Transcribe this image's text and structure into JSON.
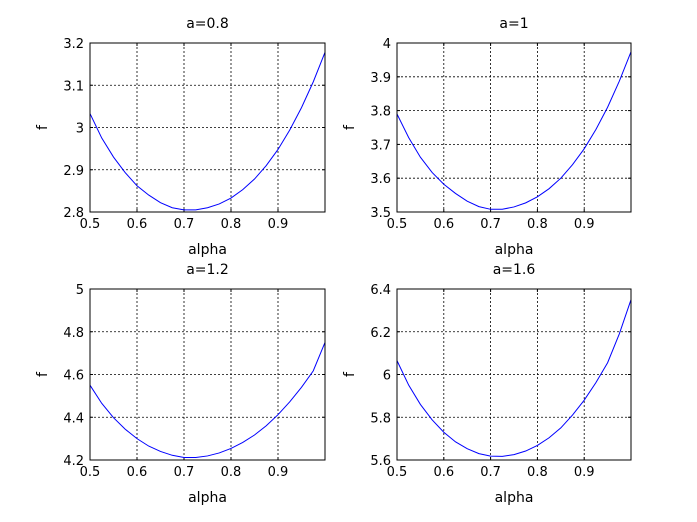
{
  "chart_data": [
    {
      "type": "line",
      "title": "a=0.8",
      "xlabel": "alpha",
      "ylabel": "f",
      "xlim": [
        0.5,
        1.0
      ],
      "ylim": [
        2.8,
        3.2
      ],
      "xticks": [
        0.5,
        0.6,
        0.7,
        0.8,
        0.9
      ],
      "xtick_labels": [
        "0.5",
        "0.6",
        "0.7",
        "0.8",
        "0.9"
      ],
      "yticks": [
        2.8,
        2.9,
        3.0,
        3.1,
        3.2
      ],
      "ytick_labels": [
        "2.8",
        "2.9",
        "3",
        "3.1",
        "3.2"
      ],
      "grid": true,
      "series": [
        {
          "color": "#0000ff",
          "x": [
            0.5,
            0.525,
            0.55,
            0.575,
            0.6,
            0.625,
            0.65,
            0.675,
            0.7,
            0.725,
            0.75,
            0.775,
            0.8,
            0.825,
            0.85,
            0.875,
            0.9,
            0.925,
            0.95,
            0.975,
            1.0
          ],
          "y": [
            3.033,
            2.975,
            2.93,
            2.893,
            2.862,
            2.84,
            2.822,
            2.81,
            2.805,
            2.805,
            2.81,
            2.819,
            2.833,
            2.853,
            2.878,
            2.91,
            2.948,
            2.994,
            3.047,
            3.108,
            3.178
          ]
        }
      ]
    },
    {
      "type": "line",
      "title": "a=1",
      "xlabel": "alpha",
      "ylabel": "f",
      "xlim": [
        0.5,
        1.0
      ],
      "ylim": [
        3.5,
        4.0
      ],
      "xticks": [
        0.5,
        0.6,
        0.7,
        0.8,
        0.9
      ],
      "xtick_labels": [
        "0.5",
        "0.6",
        "0.7",
        "0.8",
        "0.9"
      ],
      "yticks": [
        3.5,
        3.6,
        3.7,
        3.8,
        3.9,
        4.0
      ],
      "ytick_labels": [
        "3.5",
        "3.6",
        "3.7",
        "3.8",
        "3.9",
        "4"
      ],
      "grid": true,
      "series": [
        {
          "color": "#0000ff",
          "x": [
            0.5,
            0.525,
            0.55,
            0.575,
            0.6,
            0.625,
            0.65,
            0.675,
            0.7,
            0.725,
            0.75,
            0.775,
            0.8,
            0.825,
            0.85,
            0.875,
            0.9,
            0.925,
            0.95,
            0.975,
            1.0
          ],
          "y": [
            3.79,
            3.72,
            3.662,
            3.617,
            3.582,
            3.555,
            3.532,
            3.516,
            3.508,
            3.508,
            3.515,
            3.527,
            3.545,
            3.569,
            3.6,
            3.64,
            3.687,
            3.744,
            3.81,
            3.887,
            3.974
          ]
        }
      ]
    },
    {
      "type": "line",
      "title": "a=1.2",
      "xlabel": "alpha",
      "ylabel": "f",
      "xlim": [
        0.5,
        1.0
      ],
      "ylim": [
        4.2,
        5.0
      ],
      "xticks": [
        0.5,
        0.6,
        0.7,
        0.8,
        0.9
      ],
      "xtick_labels": [
        "0.5",
        "0.6",
        "0.7",
        "0.8",
        "0.9"
      ],
      "yticks": [
        4.2,
        4.4,
        4.6,
        4.8,
        5.0
      ],
      "ytick_labels": [
        "4.2",
        "4.4",
        "4.6",
        "4.8",
        "5"
      ],
      "grid": true,
      "series": [
        {
          "color": "#0000ff",
          "x": [
            0.5,
            0.525,
            0.55,
            0.575,
            0.6,
            0.625,
            0.65,
            0.675,
            0.7,
            0.725,
            0.75,
            0.775,
            0.8,
            0.825,
            0.85,
            0.875,
            0.9,
            0.925,
            0.95,
            0.975,
            1.0
          ],
          "y": [
            4.55,
            4.465,
            4.398,
            4.344,
            4.3,
            4.265,
            4.24,
            4.222,
            4.212,
            4.212,
            4.219,
            4.233,
            4.254,
            4.282,
            4.317,
            4.36,
            4.412,
            4.472,
            4.54,
            4.617,
            4.75
          ]
        }
      ]
    },
    {
      "type": "line",
      "title": "a=1.6",
      "xlabel": "alpha",
      "ylabel": "f",
      "xlim": [
        0.5,
        1.0
      ],
      "ylim": [
        5.6,
        6.4
      ],
      "xticks": [
        0.5,
        0.6,
        0.7,
        0.8,
        0.9
      ],
      "xtick_labels": [
        "0.5",
        "0.6",
        "0.7",
        "0.8",
        "0.9"
      ],
      "yticks": [
        5.6,
        5.8,
        6.0,
        6.2,
        6.4
      ],
      "ytick_labels": [
        "5.6",
        "5.8",
        "6",
        "6.2",
        "6.4"
      ],
      "grid": true,
      "series": [
        {
          "color": "#0000ff",
          "x": [
            0.5,
            0.525,
            0.55,
            0.575,
            0.6,
            0.625,
            0.65,
            0.675,
            0.7,
            0.725,
            0.75,
            0.775,
            0.8,
            0.825,
            0.85,
            0.875,
            0.9,
            0.925,
            0.95,
            0.975,
            1.0
          ],
          "y": [
            6.065,
            5.95,
            5.86,
            5.788,
            5.73,
            5.685,
            5.653,
            5.63,
            5.618,
            5.617,
            5.625,
            5.642,
            5.668,
            5.704,
            5.75,
            5.81,
            5.88,
            5.962,
            6.055,
            6.19,
            6.35
          ]
        }
      ]
    }
  ]
}
